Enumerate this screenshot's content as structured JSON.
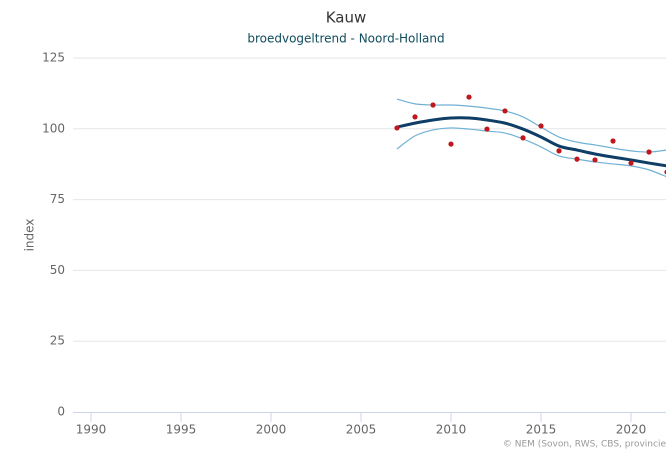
{
  "chart_data": {
    "type": "line",
    "title": "Kauw",
    "subtitle": "broedvogeltrend - Noord-Holland",
    "y_label": "index",
    "credits": "© NEM (Sovon, RWS, CBS, provincie",
    "x": [
      2007,
      2008,
      2009,
      2010,
      2011,
      2012,
      2013,
      2014,
      2015,
      2016,
      2017,
      2018,
      2019,
      2020,
      2021,
      2022
    ],
    "series": [
      {
        "kind": "band-line",
        "color": "#6fb1d4",
        "values": [
          110.5,
          108.8,
          108.4,
          108.4,
          108,
          107.3,
          106.3,
          104.2,
          100.6,
          97.1,
          95.3,
          94.3,
          93.2,
          92.2,
          91.8,
          92.5
        ]
      },
      {
        "kind": "band-line",
        "color": "#6fb1d4",
        "values": [
          92.9,
          97.5,
          99.6,
          100.3,
          99.9,
          99.2,
          98.5,
          96.4,
          93.6,
          90.4,
          89.3,
          88.3,
          87.6,
          86.9,
          85.5,
          83
        ]
      },
      {
        "kind": "trend-line",
        "color": "#0e3d66",
        "values": [
          100.6,
          102,
          103.1,
          103.8,
          103.8,
          103.1,
          102,
          99.9,
          97.1,
          93.9,
          92.5,
          91.1,
          90,
          89,
          87.9,
          86.9
        ]
      },
      {
        "kind": "scatter",
        "color": "#c0171c",
        "values": [
          100.3,
          104.2,
          108.4,
          94.6,
          111.2,
          99.9,
          106.3,
          96.8,
          101,
          92.2,
          89.3,
          89,
          95.7,
          87.9,
          91.8,
          84.7
        ]
      }
    ],
    "xlim": [
      1989,
      2022
    ],
    "xticks": [
      1990,
      1995,
      2000,
      2005,
      2010,
      2015,
      2020
    ],
    "ylim": [
      0,
      125
    ],
    "yticks": [
      0,
      25,
      50,
      75,
      100,
      125
    ],
    "grid": true
  }
}
